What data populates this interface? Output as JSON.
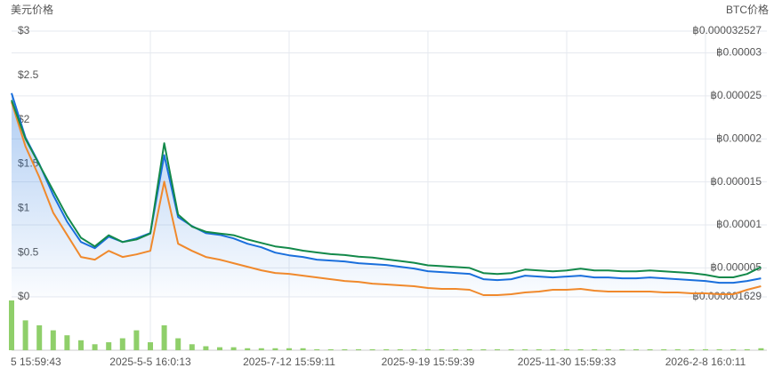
{
  "chart_data": {
    "type": "line",
    "y_label": "美元价格",
    "y2_label": "BTC价格",
    "categories": [
      "5 15:59:43",
      null,
      null,
      null,
      null,
      null,
      null,
      null,
      null,
      null,
      "2025-5-5 16:0:13",
      null,
      null,
      null,
      null,
      null,
      null,
      null,
      null,
      null,
      "2025-7-12 15:59:11",
      null,
      null,
      null,
      null,
      null,
      null,
      null,
      null,
      null,
      "2025-9-19 15:59:39",
      null,
      null,
      null,
      null,
      null,
      null,
      null,
      null,
      null,
      "2025-11-30 15:59:33",
      null,
      null,
      null,
      null,
      null,
      null,
      null,
      null,
      null,
      "2026-2-8 16:0:11",
      null,
      null,
      null,
      null
    ],
    "series": [
      {
        "color": "#1a6fdc",
        "area": true,
        "values": [
          2.3,
          1.8,
          1.5,
          1.15,
          0.85,
          0.62,
          0.55,
          0.68,
          0.62,
          0.66,
          0.72,
          1.6,
          0.9,
          0.8,
          0.72,
          0.7,
          0.66,
          0.6,
          0.56,
          0.5,
          0.47,
          0.45,
          0.42,
          0.41,
          0.4,
          0.38,
          0.37,
          0.36,
          0.34,
          0.32,
          0.29,
          0.28,
          0.27,
          0.26,
          0.2,
          0.19,
          0.2,
          0.24,
          0.23,
          0.22,
          0.23,
          0.24,
          0.22,
          0.22,
          0.21,
          0.21,
          0.22,
          0.21,
          0.2,
          0.19,
          0.18,
          0.16,
          0.16,
          0.18,
          0.21
        ]
      },
      {
        "color": "#f0892c",
        "values": [
          2.2,
          1.7,
          1.35,
          0.95,
          0.7,
          0.45,
          0.42,
          0.52,
          0.45,
          0.48,
          0.52,
          1.3,
          0.6,
          0.52,
          0.45,
          0.42,
          0.38,
          0.34,
          0.3,
          0.27,
          0.26,
          0.24,
          0.22,
          0.2,
          0.18,
          0.17,
          0.15,
          0.14,
          0.13,
          0.12,
          0.1,
          0.09,
          0.09,
          0.08,
          0.02,
          0.02,
          0.03,
          0.05,
          0.06,
          0.08,
          0.08,
          0.09,
          0.07,
          0.06,
          0.06,
          0.06,
          0.06,
          0.05,
          0.05,
          0.04,
          0.04,
          0.03,
          0.03,
          0.08,
          0.12
        ]
      },
      {
        "color": "#13894a",
        "axis": "y2",
        "values": [
          2.45e-05,
          2e-05,
          1.7e-05,
          1.4e-05,
          1.1e-05,
          8.5e-06,
          7.5e-06,
          8.8e-06,
          8e-06,
          8.3e-06,
          9e-06,
          1.95e-05,
          1.12e-05,
          9.8e-06,
          9.2e-06,
          9e-06,
          8.8e-06,
          8.3e-06,
          7.9e-06,
          7.5e-06,
          7.3e-06,
          7e-06,
          6.8e-06,
          6.6e-06,
          6.5e-06,
          6.3e-06,
          6.2e-06,
          6e-06,
          5.8e-06,
          5.6e-06,
          5.3e-06,
          5.2e-06,
          5.1e-06,
          5e-06,
          4.4e-06,
          4.3e-06,
          4.4e-06,
          4.8e-06,
          4.7e-06,
          4.6e-06,
          4.7e-06,
          4.9e-06,
          4.7e-06,
          4.7e-06,
          4.6e-06,
          4.6e-06,
          4.7e-06,
          4.6e-06,
          4.5e-06,
          4.4e-06,
          4.2e-06,
          3.9e-06,
          3.9e-06,
          4.3e-06,
          5.1e-06
        ]
      }
    ],
    "volume": {
      "color": "#8fcf6a",
      "values": [
        50,
        30,
        25,
        20,
        15,
        10,
        6,
        8,
        12,
        20,
        8,
        25,
        12,
        6,
        4,
        3,
        3,
        2,
        2,
        2,
        2,
        2,
        1,
        1,
        1,
        1,
        1,
        1,
        1,
        1,
        1,
        1,
        1,
        1,
        1,
        1,
        1,
        1,
        1,
        1,
        1,
        1,
        1,
        1,
        1,
        1,
        1,
        1,
        1,
        1,
        1,
        1,
        1,
        1,
        2
      ]
    },
    "ylim": [
      0,
      3
    ],
    "yticks": [
      {
        "value": 0,
        "label": "$0"
      },
      {
        "value": 0.5,
        "label": "$0.5"
      },
      {
        "value": 1,
        "label": "$1"
      },
      {
        "value": 1.5,
        "label": "$1.5"
      },
      {
        "value": 2,
        "label": "$2"
      },
      {
        "value": 2.5,
        "label": "$2.5"
      },
      {
        "value": 3,
        "label": "$3"
      }
    ],
    "y2lim": [
      1.629e-06,
      3.2527e-05
    ],
    "y2ticks": [
      {
        "value": 1.629e-06,
        "label": "฿0.000001629"
      },
      {
        "value": 5e-06,
        "label": "฿0.000005"
      },
      {
        "value": 1e-05,
        "label": "฿0.00001"
      },
      {
        "value": 1.5e-05,
        "label": "฿0.000015"
      },
      {
        "value": 2e-05,
        "label": "฿0.00002"
      },
      {
        "value": 2.5e-05,
        "label": "฿0.000025"
      },
      {
        "value": 3e-05,
        "label": "฿0.00003"
      },
      {
        "value": 3.2527e-05,
        "label": "฿0.000032527"
      }
    ],
    "grid": true
  }
}
